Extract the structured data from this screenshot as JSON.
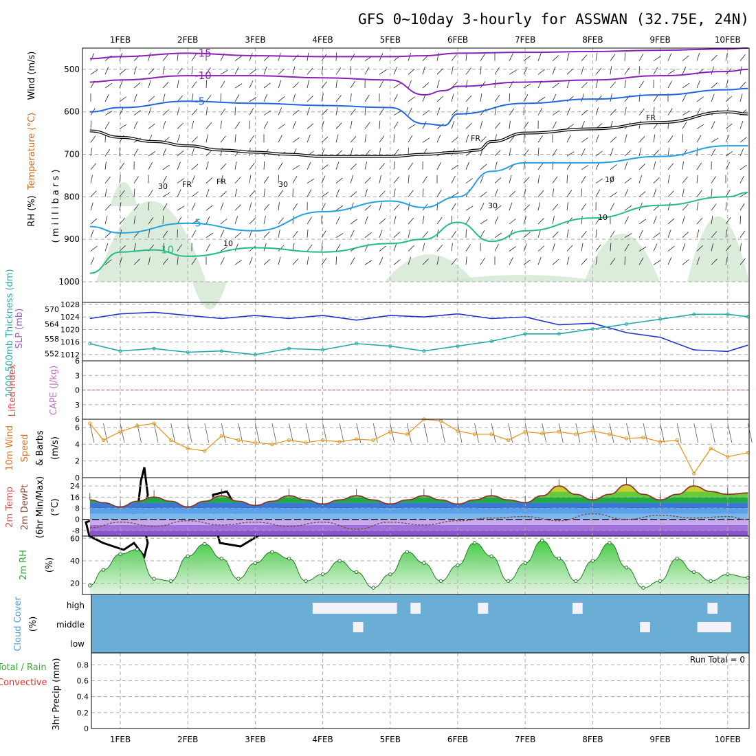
{
  "page": {
    "title": "GFS 0~10day 3-hourly for ASSWAN (32.75E, 24N)"
  },
  "colors": {
    "temp_purple": "#8a1fb8",
    "temp_blue": "#2266dd",
    "temp_lightblue": "#22a0e0",
    "temp_green": "#22bb88",
    "temp_orange": "#dd9922",
    "temp_dark_orange": "#cc6611",
    "temp_magenta": "#cc1199",
    "freezing": "#000000",
    "rh_fill": "#cfe6cf",
    "slp_line": "#2233cc",
    "thickness_line": "#22aaaa",
    "wind_line": "#e09922",
    "cloud_bg": "#6aaed6",
    "cloud_clear": "#f4f2f8",
    "dewpt_line": "#8b4b3a",
    "zero_line": "#e03030"
  },
  "x_axis": {
    "day_labels": [
      "1FEB",
      "2FEB",
      "3FEB",
      "4FEB",
      "5FEB",
      "6FEB",
      "7FEB",
      "8FEB",
      "9FEB",
      "10FEB"
    ]
  },
  "chart_data": [
    {
      "type": "line",
      "name": "upper-air",
      "ylabel": "( m i l l i b a r s )",
      "side_labels": [
        "Wind (m/s)",
        "Temperature (°C)",
        "RH (%)"
      ],
      "y_ticks": [
        500,
        600,
        700,
        800,
        900,
        1000
      ],
      "ylim": [
        450,
        1000
      ],
      "x_range_days": [
        0.55,
        10.3
      ],
      "isotherms": [
        {
          "label": "-15",
          "color": "temp_purple",
          "x": [
            0.55,
            1,
            2,
            3,
            4,
            5,
            5.5,
            6,
            7,
            8,
            9,
            10,
            10.3
          ],
          "p": [
            475,
            470,
            462,
            468,
            470,
            470,
            468,
            462,
            460,
            458,
            455,
            452,
            450
          ]
        },
        {
          "label": "-10",
          "color": "temp_purple",
          "x": [
            0.55,
            1,
            2,
            3,
            4,
            5,
            5.5,
            5.8,
            6,
            7,
            8,
            9,
            10,
            10.3
          ],
          "p": [
            530,
            525,
            515,
            515,
            520,
            525,
            560,
            550,
            540,
            530,
            525,
            515,
            505,
            500
          ]
        },
        {
          "label": "-5",
          "color": "temp_blue",
          "x": [
            0.55,
            1,
            2,
            3,
            4,
            5,
            5.5,
            5.8,
            6,
            7,
            8,
            9,
            10,
            10.3
          ],
          "p": [
            600,
            590,
            575,
            580,
            585,
            590,
            628,
            632,
            605,
            580,
            570,
            560,
            548,
            545
          ]
        },
        {
          "label": "5",
          "color": "temp_lightblue",
          "x": [
            0.55,
            1,
            2,
            3,
            4,
            5,
            5.5,
            6,
            6.5,
            7,
            8,
            9,
            10,
            10.3
          ],
          "p": [
            870,
            885,
            862,
            880,
            835,
            810,
            825,
            800,
            740,
            720,
            720,
            705,
            680,
            680
          ]
        },
        {
          "label": "10",
          "color": "temp_green",
          "x": [
            0.55,
            1,
            1.5,
            2,
            3,
            4,
            5,
            5.5,
            6,
            6.5,
            7,
            8,
            9,
            10,
            10.3
          ],
          "p": [
            980,
            930,
            925,
            940,
            920,
            930,
            910,
            900,
            860,
            905,
            880,
            850,
            820,
            800,
            790
          ]
        }
      ],
      "freezing_level": {
        "label": "FR",
        "x": [
          0.55,
          1,
          1.5,
          2,
          2.5,
          3,
          3.5,
          4,
          5,
          5.5,
          6,
          6.3,
          6.5,
          7,
          8,
          9,
          10,
          10.3
        ],
        "p": [
          645,
          660,
          670,
          680,
          690,
          695,
          700,
          705,
          705,
          700,
          695,
          690,
          670,
          650,
          640,
          625,
          600,
          605
        ]
      },
      "annotations": [
        "FR",
        "FR",
        "FR",
        "FR",
        "10",
        "30",
        "30",
        "10",
        "30",
        "10"
      ]
    },
    {
      "type": "line",
      "name": "slp-thickness",
      "ylabel_left": "1000-500mb Thickness (dm)",
      "ylabel_right": "SLP (mb)",
      "left_ticks": [
        552,
        558,
        564,
        570
      ],
      "right_ticks": [
        1012,
        1016,
        1020,
        1024,
        1028
      ],
      "series": [
        {
          "name": "SLP (mb)",
          "axis": "right",
          "x": [
            0.55,
            1,
            1.5,
            2,
            2.5,
            3,
            3.5,
            4,
            4.5,
            5,
            5.5,
            6,
            6.5,
            7,
            7.5,
            8,
            8.5,
            9,
            9.5,
            10,
            10.3
          ],
          "values": [
            1023.5,
            1025,
            1025.5,
            1024.5,
            1023.5,
            1024.5,
            1023.5,
            1024.5,
            1023,
            1024.5,
            1024,
            1025,
            1023.5,
            1024,
            1021.5,
            1022,
            1019,
            1017.5,
            1013.5,
            1013,
            1015
          ]
        },
        {
          "name": "1000-500mb Thickness (dm)",
          "axis": "left",
          "x": [
            0.55,
            1,
            1.5,
            2,
            2.5,
            3,
            3.5,
            4,
            4.5,
            5,
            5.5,
            6,
            6.5,
            7,
            7.5,
            8,
            8.5,
            9,
            9.5,
            10,
            10.3
          ],
          "values": [
            556,
            553,
            554,
            552.5,
            553,
            551.5,
            554,
            553.5,
            556,
            555,
            553,
            555,
            557,
            560,
            560,
            562,
            564,
            566,
            568,
            568,
            567
          ]
        }
      ]
    },
    {
      "type": "line",
      "name": "stability",
      "ylabel_left": "Lifted Index",
      "ylabel_right": "CAPE (J/kg)",
      "y_ticks": [
        -6,
        -3,
        0,
        3,
        6
      ],
      "tick_labels": [
        "6",
        "3",
        "0",
        "3",
        "6"
      ],
      "ylim": [
        -6,
        6
      ],
      "series": [
        {
          "name": "Lifted Index zero line",
          "values": [
            0
          ]
        }
      ]
    },
    {
      "type": "line",
      "name": "surface-wind",
      "ylabel": "10m Wind Speed & Barbs (m/s)",
      "y_ticks": [
        0,
        2,
        4,
        6
      ],
      "ylim": [
        0,
        7
      ],
      "series": [
        {
          "name": "10m wind speed",
          "x": [
            0.55,
            0.75,
            1,
            1.25,
            1.5,
            1.75,
            2,
            2.25,
            2.5,
            2.75,
            3,
            3.25,
            3.5,
            3.75,
            4,
            4.25,
            4.5,
            4.75,
            5,
            5.25,
            5.5,
            5.75,
            6,
            6.25,
            6.5,
            6.75,
            7,
            7.25,
            7.5,
            7.75,
            8,
            8.25,
            8.5,
            8.75,
            9,
            9.25,
            9.5,
            9.75,
            10,
            10.3
          ],
          "values": [
            6.5,
            4.5,
            5.5,
            6.2,
            6.5,
            4.5,
            3.5,
            3.2,
            5,
            4.5,
            4.2,
            4,
            4.5,
            4.2,
            4.5,
            4.3,
            4.6,
            4.5,
            5.5,
            5.2,
            7,
            6.8,
            5.6,
            5.2,
            5.2,
            4.5,
            5.5,
            5.3,
            5.5,
            5.2,
            5.6,
            5.2,
            4.7,
            4.8,
            4.3,
            4.5,
            0.5,
            3.5,
            2.5,
            3
          ]
        }
      ]
    },
    {
      "type": "area",
      "name": "temperature",
      "ylabel": "2m Temp 2m DewPt (6hr Min/Max) (°C)",
      "y_ticks": [
        -8,
        0,
        8,
        16,
        24
      ],
      "ylim": [
        -12,
        30
      ],
      "series": [
        {
          "name": "2m Temp",
          "x": [
            0.55,
            0.75,
            1,
            1.25,
            1.5,
            1.75,
            2,
            2.25,
            2.5,
            2.75,
            3,
            3.25,
            3.5,
            3.75,
            4,
            4.25,
            4.5,
            4.75,
            5,
            5.25,
            5.5,
            5.75,
            6,
            6.25,
            6.5,
            6.75,
            7,
            7.25,
            7.5,
            7.75,
            8,
            8.25,
            8.5,
            8.75,
            9,
            9.25,
            9.5,
            9.75,
            10,
            10.3
          ],
          "values": [
            14,
            12,
            9,
            13,
            16,
            13,
            9,
            13,
            17,
            13,
            10,
            13,
            17,
            14,
            11,
            14,
            17,
            14,
            11,
            14,
            17,
            14,
            11,
            14,
            17,
            14,
            12,
            17,
            24,
            18,
            14,
            18,
            25,
            18,
            14,
            18,
            24,
            20,
            18,
            19
          ]
        },
        {
          "name": "2m DewPt",
          "x": [
            0.55,
            1,
            1.5,
            2,
            2.5,
            3,
            3.5,
            4,
            4.5,
            5,
            5.5,
            6,
            6.5,
            7,
            7.5,
            8,
            8.5,
            9,
            9.5,
            10,
            10.3
          ],
          "values": [
            -6,
            -2,
            -5,
            -1,
            -4,
            -2,
            -5,
            -2,
            -7,
            -2,
            -4,
            -1,
            1,
            2,
            -1,
            4,
            0,
            3,
            1,
            2,
            0
          ]
        }
      ]
    },
    {
      "type": "area",
      "name": "relative-humidity",
      "ylabel": "2m RH (%)",
      "y_ticks": [
        20,
        40,
        60
      ],
      "ylim": [
        10,
        62
      ],
      "series": [
        {
          "name": "2m RH",
          "x": [
            0.55,
            0.75,
            1,
            1.25,
            1.5,
            1.75,
            2,
            2.25,
            2.5,
            2.75,
            3,
            3.25,
            3.5,
            3.75,
            4,
            4.25,
            4.5,
            4.75,
            5,
            5.25,
            5.5,
            5.75,
            6,
            6.25,
            6.5,
            6.75,
            7,
            7.25,
            7.5,
            7.75,
            8,
            8.25,
            8.5,
            8.75,
            9,
            9.25,
            9.5,
            9.75,
            10,
            10.3
          ],
          "values": [
            18,
            32,
            46,
            50,
            24,
            22,
            44,
            55,
            42,
            24,
            38,
            48,
            42,
            22,
            28,
            40,
            30,
            16,
            28,
            48,
            38,
            22,
            36,
            56,
            44,
            22,
            38,
            58,
            42,
            22,
            40,
            56,
            34,
            16,
            22,
            42,
            30,
            22,
            28,
            25
          ]
        }
      ]
    },
    {
      "type": "heatmap",
      "name": "cloud-cover",
      "ylabel": "Cloud Cover (%)",
      "level_labels": [
        "high",
        "middle",
        "low"
      ],
      "clear_blocks": [
        {
          "level": "high",
          "x_start": 3.85,
          "x_end": 4.3
        },
        {
          "level": "high",
          "x_start": 4.1,
          "x_end": 5.1
        },
        {
          "level": "high",
          "x_start": 5.3,
          "x_end": 5.45
        },
        {
          "level": "high",
          "x_start": 6.3,
          "x_end": 6.45
        },
        {
          "level": "high",
          "x_start": 7.7,
          "x_end": 7.85
        },
        {
          "level": "high",
          "x_start": 9.7,
          "x_end": 9.85
        },
        {
          "level": "middle",
          "x_start": 4.45,
          "x_end": 4.6
        },
        {
          "level": "middle",
          "x_start": 8.7,
          "x_end": 8.85
        },
        {
          "level": "middle",
          "x_start": 9.55,
          "x_end": 10.05
        }
      ]
    },
    {
      "type": "bar",
      "name": "precipitation",
      "ylabel": "3hr Precip (mm)",
      "side_labels": [
        "Total / Rain",
        "Convective"
      ],
      "y_ticks": [
        0,
        0.2,
        0.4,
        0.6,
        0.8
      ],
      "ylim": [
        0,
        0.95
      ],
      "run_total_label": "Run Total = 0",
      "values": []
    }
  ]
}
